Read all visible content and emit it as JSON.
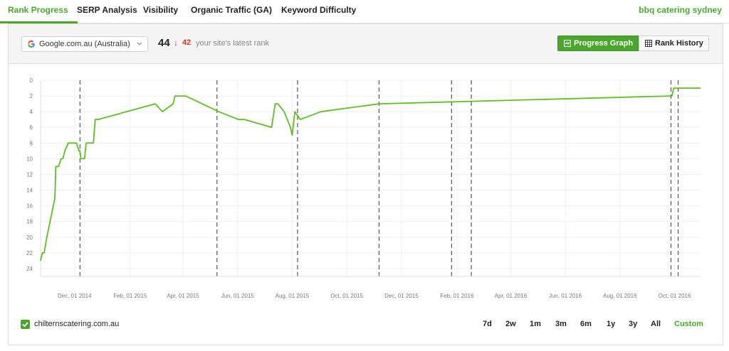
{
  "nav": {
    "tabs": [
      {
        "label": "Rank Progress",
        "active": true
      },
      {
        "label": "SERP Analysis",
        "active": false
      },
      {
        "label": "Visibility",
        "active": false
      },
      {
        "label": "Organic Traffic (GA)",
        "active": false
      },
      {
        "label": "Keyword Difficulty",
        "active": false
      }
    ],
    "keyword": "bbq catering sydney"
  },
  "toolbar": {
    "engine_icon": "google-g-icon",
    "engine_label": "Google.com.au (Australia)",
    "current_rank": "44",
    "change_arrow": "↓",
    "previous_rank": "42",
    "rank_description": "your site's latest rank",
    "progress_graph_label": "Progress Graph",
    "rank_history_label": "Rank History",
    "active_view": "Progress Graph"
  },
  "legend": {
    "domain": "chilternscatering.com.au",
    "checked": true
  },
  "ranges": [
    "7d",
    "2w",
    "1m",
    "3m",
    "6m",
    "1y",
    "3y",
    "All",
    "Custom"
  ],
  "active_range": "Custom",
  "colors": {
    "accent": "#4aa72c",
    "down": "#d9342b",
    "line": "#5bbf1e"
  },
  "chart_data": {
    "type": "line",
    "title": "",
    "xlabel": "",
    "ylabel": "",
    "y_inverted": true,
    "ylim": [
      0,
      25
    ],
    "yticks": [
      0,
      2,
      4,
      6,
      8,
      10,
      12,
      14,
      16,
      18,
      20,
      22,
      24
    ],
    "xticks": [
      "Dec, 01 2014",
      "Feb, 01 2015",
      "Apr, 01 2015",
      "Jun, 01 2015",
      "Aug, 01 2015",
      "Oct, 01 2015",
      "Dec, 01 2015",
      "Feb, 01 2016",
      "Apr, 01 2016",
      "Jun, 01 2016",
      "Aug, 01 2016",
      "Oct, 01 2016"
    ],
    "xlim": [
      "2014-10-24",
      "2016-10-30"
    ],
    "grid": true,
    "series": [
      {
        "name": "chilternscatering.com.au",
        "points": [
          [
            "2014-10-24",
            23
          ],
          [
            "2014-10-26",
            22
          ],
          [
            "2014-10-28",
            22
          ],
          [
            "2014-10-31",
            20
          ],
          [
            "2014-11-09",
            15
          ],
          [
            "2014-11-10",
            11
          ],
          [
            "2014-11-13",
            11
          ],
          [
            "2014-11-16",
            10
          ],
          [
            "2014-11-18",
            10
          ],
          [
            "2014-11-20",
            9
          ],
          [
            "2014-11-24",
            8
          ],
          [
            "2014-12-03",
            8
          ],
          [
            "2014-12-06",
            9
          ],
          [
            "2014-12-07",
            9
          ],
          [
            "2014-12-08",
            10
          ],
          [
            "2014-12-12",
            10
          ],
          [
            "2014-12-14",
            8
          ],
          [
            "2014-12-22",
            8
          ],
          [
            "2014-12-24",
            5
          ],
          [
            "2014-12-27",
            5
          ],
          [
            "2015-03-01",
            3
          ],
          [
            "2015-03-09",
            4
          ],
          [
            "2015-03-21",
            3
          ],
          [
            "2015-03-23",
            2
          ],
          [
            "2015-04-04",
            2
          ],
          [
            "2015-05-11",
            4
          ],
          [
            "2015-06-02",
            5
          ],
          [
            "2015-06-09",
            5
          ],
          [
            "2015-07-09",
            6
          ],
          [
            "2015-07-13",
            3
          ],
          [
            "2015-07-16",
            3
          ],
          [
            "2015-07-23",
            4
          ],
          [
            "2015-07-30",
            6
          ],
          [
            "2015-08-01",
            7
          ],
          [
            "2015-08-04",
            4
          ],
          [
            "2015-08-10",
            5
          ],
          [
            "2015-09-02",
            4
          ],
          [
            "2015-11-06",
            3
          ],
          [
            "2016-09-26",
            2
          ],
          [
            "2016-09-28",
            2
          ],
          [
            "2016-09-30",
            1
          ],
          [
            "2016-12-31",
            1
          ]
        ]
      }
    ],
    "marker_dates": [
      "2014-12-07",
      "2015-05-09",
      "2015-08-07",
      "2015-11-06",
      "2016-01-26",
      "2016-02-17",
      "2016-09-27",
      "2016-10-05"
    ]
  }
}
